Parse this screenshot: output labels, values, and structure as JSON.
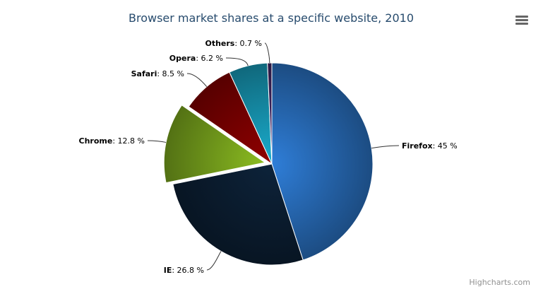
{
  "chart_data": {
    "type": "pie",
    "title": "Browser market shares at a specific website, 2010",
    "unit": "%",
    "slices": [
      {
        "name": "Firefox",
        "value": 45.0,
        "color": "#2f7ed8",
        "sliced": false
      },
      {
        "name": "IE",
        "value": 26.8,
        "color": "#0d233a",
        "sliced": false
      },
      {
        "name": "Chrome",
        "value": 12.8,
        "color": "#8bbc21",
        "sliced": true
      },
      {
        "name": "Safari",
        "value": 8.5,
        "color": "#910000",
        "sliced": false
      },
      {
        "name": "Opera",
        "value": 6.2,
        "color": "#1aadce",
        "sliced": false
      },
      {
        "name": "Others",
        "value": 0.7,
        "color": "#492970",
        "sliced": false
      }
    ]
  },
  "credits": "Highcharts.com",
  "menu_icon": "hamburger-menu-icon"
}
